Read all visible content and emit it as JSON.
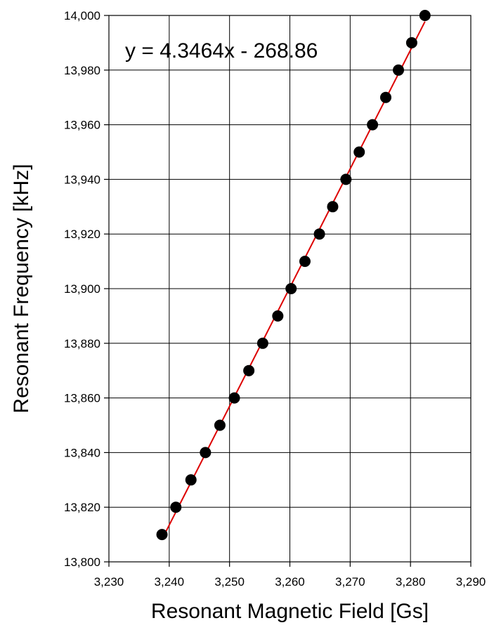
{
  "chart_data": {
    "type": "scatter",
    "title": "",
    "xlabel": "Resonant Magnetic Field [Gs]",
    "ylabel": "Resonant Frequency [kHz]",
    "xlim": [
      3230,
      3290
    ],
    "ylim": [
      13800,
      14000
    ],
    "x_ticks": [
      "3,230",
      "3,240",
      "3,250",
      "3,260",
      "3,270",
      "3,280",
      "3,290"
    ],
    "y_ticks": [
      "13,800",
      "13,820",
      "13,840",
      "13,860",
      "13,880",
      "13,900",
      "13,920",
      "13,940",
      "13,960",
      "13,980",
      "14,000"
    ],
    "grid": true,
    "annotation": "y = 4.3464x - 268.86",
    "trendline": {
      "slope": 4.3464,
      "intercept": -268.86,
      "color": "#dd0000"
    },
    "marker_color": "#000000",
    "points": [
      {
        "x": 3238.8,
        "y": 13810
      },
      {
        "x": 3241.1,
        "y": 13820
      },
      {
        "x": 3243.6,
        "y": 13830
      },
      {
        "x": 3246.0,
        "y": 13840
      },
      {
        "x": 3248.4,
        "y": 13850
      },
      {
        "x": 3250.8,
        "y": 13860
      },
      {
        "x": 3253.2,
        "y": 13870
      },
      {
        "x": 3255.5,
        "y": 13880
      },
      {
        "x": 3258.0,
        "y": 13890
      },
      {
        "x": 3260.2,
        "y": 13900
      },
      {
        "x": 3262.5,
        "y": 13910
      },
      {
        "x": 3264.9,
        "y": 13920
      },
      {
        "x": 3267.1,
        "y": 13930
      },
      {
        "x": 3269.3,
        "y": 13940
      },
      {
        "x": 3271.5,
        "y": 13950
      },
      {
        "x": 3273.7,
        "y": 13960
      },
      {
        "x": 3275.9,
        "y": 13970
      },
      {
        "x": 3278.0,
        "y": 13980
      },
      {
        "x": 3280.2,
        "y": 13990
      },
      {
        "x": 3282.4,
        "y": 14000
      }
    ]
  }
}
